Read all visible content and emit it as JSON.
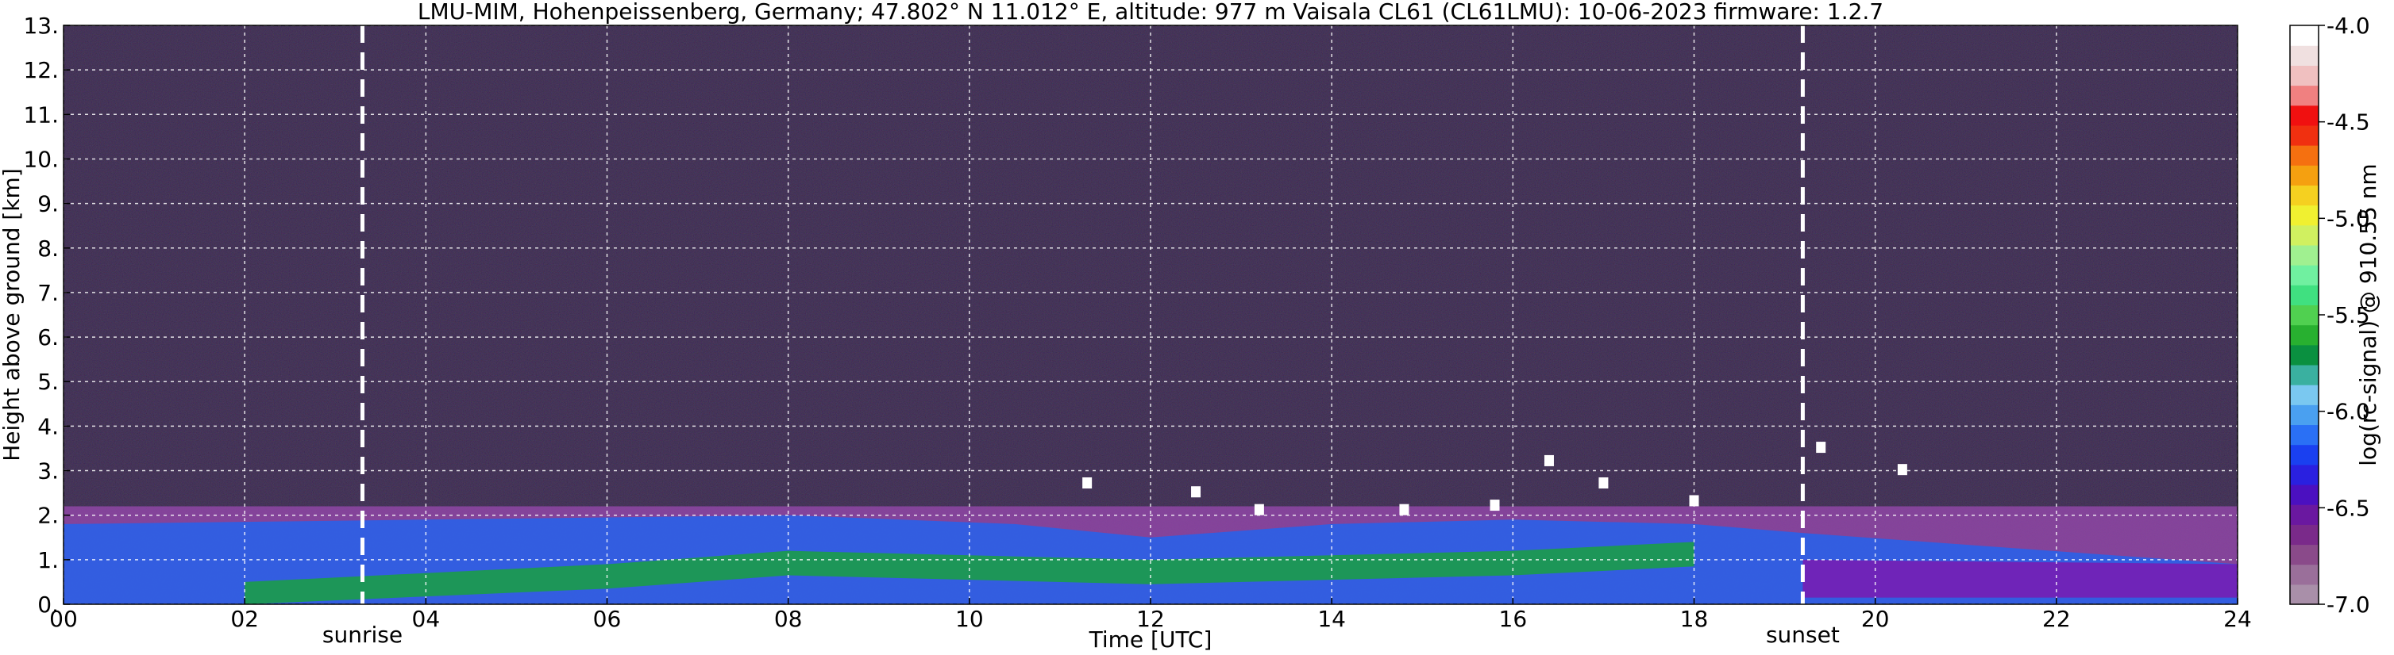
{
  "chart_data": {
    "type": "heatmap",
    "title": "LMU-MIM, Hohenpeissenberg, Germany; 47.802° N 11.012° E, altitude: 977 m    Vaisala CL61 (CL61LMU): 10-06-2023    firmware: 1.2.7",
    "xlabel": "Time [UTC]",
    "ylabel": "Height above ground [km]",
    "xlim": [
      0,
      24
    ],
    "ylim": [
      0,
      13
    ],
    "x_ticks": [
      "00",
      "02",
      "04",
      "06",
      "08",
      "10",
      "12",
      "14",
      "16",
      "18",
      "20",
      "22",
      "24"
    ],
    "y_ticks": [
      "0.",
      "1.",
      "2.",
      "3.",
      "4.",
      "5.",
      "6.",
      "7.",
      "8.",
      "9.",
      "10.",
      "11.",
      "12.",
      "13."
    ],
    "grid": true,
    "colorbar": {
      "label": "log(rc-signal) @ 910.55 nm",
      "range": [
        -7.0,
        -4.0
      ],
      "ticks": [
        "-4.0",
        "-4.5",
        "-5.0",
        "-5.5",
        "-6.0",
        "-6.5",
        "-7.0"
      ],
      "colors": [
        "#a98fa9",
        "#9a6f9a",
        "#8a4a8a",
        "#7a2a8a",
        "#6a18a0",
        "#4b10c0",
        "#2a20e0",
        "#1a40f0",
        "#2a70f5",
        "#4aa0f0",
        "#7ac8f0",
        "#3ab0a0",
        "#0a9040",
        "#28b030",
        "#50d050",
        "#40e080",
        "#70f0a0",
        "#a0f090",
        "#d0f060",
        "#f0f030",
        "#f5d020",
        "#f5a010",
        "#f57010",
        "#f03010",
        "#f01010",
        "#f08080",
        "#f0c0c0",
        "#f0e0e0",
        "#ffffff"
      ]
    },
    "annotations": [
      {
        "text": "sunrise",
        "x": 3.3
      },
      {
        "text": "sunset",
        "x": 19.2
      }
    ],
    "layers": [
      {
        "name": "boundary layer top",
        "x": [
          0,
          4,
          8,
          10.5,
          12,
          14,
          16,
          18,
          19.2,
          24
        ],
        "y": [
          1.8,
          1.9,
          2.0,
          1.8,
          1.5,
          1.8,
          1.9,
          1.8,
          1.6,
          0.9
        ]
      },
      {
        "name": "green aerosol layer",
        "x": [
          2,
          6,
          8,
          10,
          12,
          16,
          18
        ],
        "y": [
          0.5,
          0.9,
          1.2,
          1.1,
          1.0,
          1.2,
          1.4
        ]
      }
    ],
    "cloud_base": [
      {
        "x": 11.3,
        "y": 2.6
      },
      {
        "x": 12.5,
        "y": 2.4
      },
      {
        "x": 13.2,
        "y": 2.0
      },
      {
        "x": 14.8,
        "y": 2.0
      },
      {
        "x": 15.8,
        "y": 2.1
      },
      {
        "x": 16.4,
        "y": 3.1
      },
      {
        "x": 17.0,
        "y": 2.6
      },
      {
        "x": 18.0,
        "y": 2.2
      },
      {
        "x": 19.4,
        "y": 3.4
      },
      {
        "x": 20.3,
        "y": 2.9
      }
    ],
    "colors": {
      "noise_base": "#1a0f2a",
      "residual_layer": "#9a4ab0",
      "boundary_layer": "#2a60e8",
      "aerosol_green": "#1aa040",
      "night_layer": "#7a1ab0",
      "cloud": "#ffffff",
      "grid": "#ffffff"
    }
  }
}
